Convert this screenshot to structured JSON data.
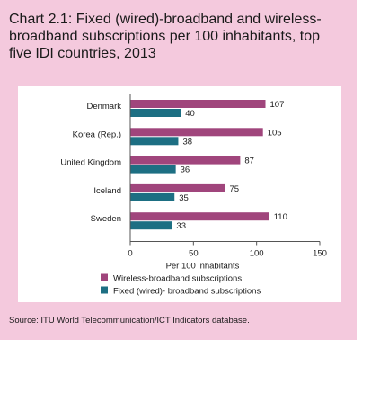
{
  "title": "Chart 2.1: Fixed (wired)-broadband and wireless-broadband subscriptions per 100 inhabitants, top five IDI countries, 2013",
  "source": "Source:    ITU World Telecommunication/ICT Indicators database.",
  "chart_data": {
    "type": "bar",
    "orientation": "horizontal",
    "categories": [
      "Denmark",
      "Korea (Rep.)",
      "United Kingdom",
      "Iceland",
      "Sweden"
    ],
    "series": [
      {
        "name": "Wireless-broadband subscriptions",
        "values": [
          107,
          105,
          87,
          75,
          110
        ],
        "color": "#a0457c"
      },
      {
        "name": "Fixed (wired)- broadband subscriptions",
        "values": [
          40,
          38,
          36,
          35,
          33
        ],
        "color": "#1d6f83"
      }
    ],
    "xlabel": "Per 100 inhabitants",
    "xlim": [
      0,
      150
    ],
    "xticks": [
      0,
      50,
      100,
      150
    ],
    "grid": false,
    "legend_position": "bottom"
  }
}
